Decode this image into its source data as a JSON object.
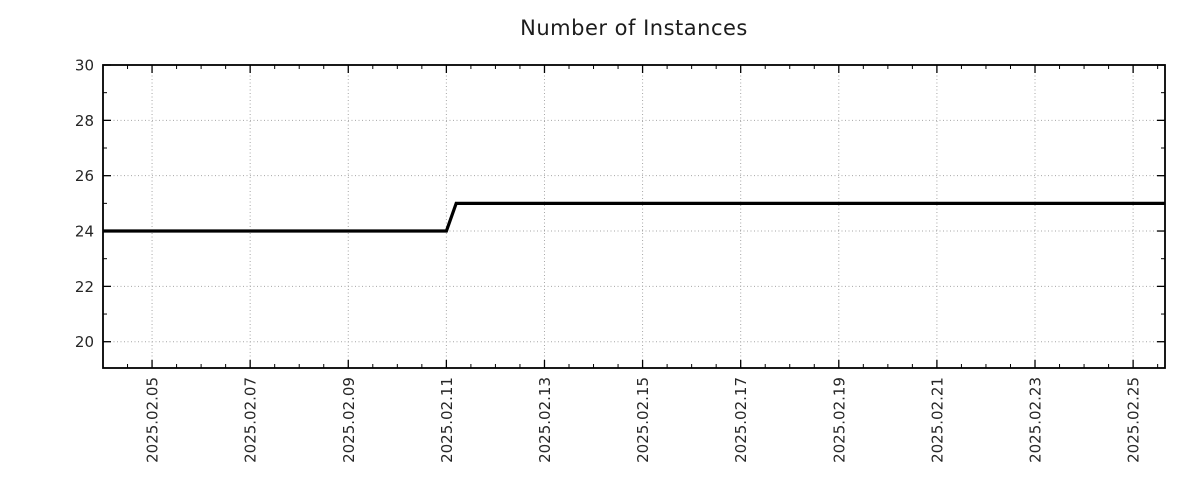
{
  "chart_data": {
    "type": "line",
    "title": "Number of Instances",
    "xlabel": "",
    "ylabel": "",
    "legend": "none",
    "grid": "dotted-at-major-ticks",
    "x_unit": "date (day of 2025-02, decimal)",
    "xlim": [
      4.0,
      25.65
    ],
    "ylim": [
      19.05,
      30
    ],
    "x_major_ticks": [
      5,
      7,
      9,
      11,
      13,
      15,
      17,
      19,
      21,
      23,
      25
    ],
    "x_tick_labels": [
      "2025.02.05",
      "2025.02.07",
      "2025.02.09",
      "2025.02.11",
      "2025.02.13",
      "2025.02.15",
      "2025.02.17",
      "2025.02.19",
      "2025.02.21",
      "2025.02.23",
      "2025.02.25"
    ],
    "x_minor_step": 0.5,
    "y_major_ticks": [
      20,
      22,
      24,
      26,
      28,
      30
    ],
    "y_tick_labels": [
      "20",
      "22",
      "24",
      "26",
      "28",
      "30"
    ],
    "y_minor_ticks": [
      21,
      23,
      25,
      27,
      29
    ],
    "series": [
      {
        "name": "number-of-instances",
        "color": "#000000",
        "line_width": 3.2,
        "points": [
          [
            4.0,
            24
          ],
          [
            11.0,
            24
          ],
          [
            11.2,
            25
          ],
          [
            25.65,
            25
          ]
        ],
        "description": "constant 24 instances until 2025.02.11, then steps up to 25 instances through 2025.02.25"
      }
    ],
    "colors": {
      "line": "#000000",
      "grid": "#a6a6a6",
      "axis": "#000000",
      "text": "#262626",
      "background": "#ffffff"
    }
  }
}
